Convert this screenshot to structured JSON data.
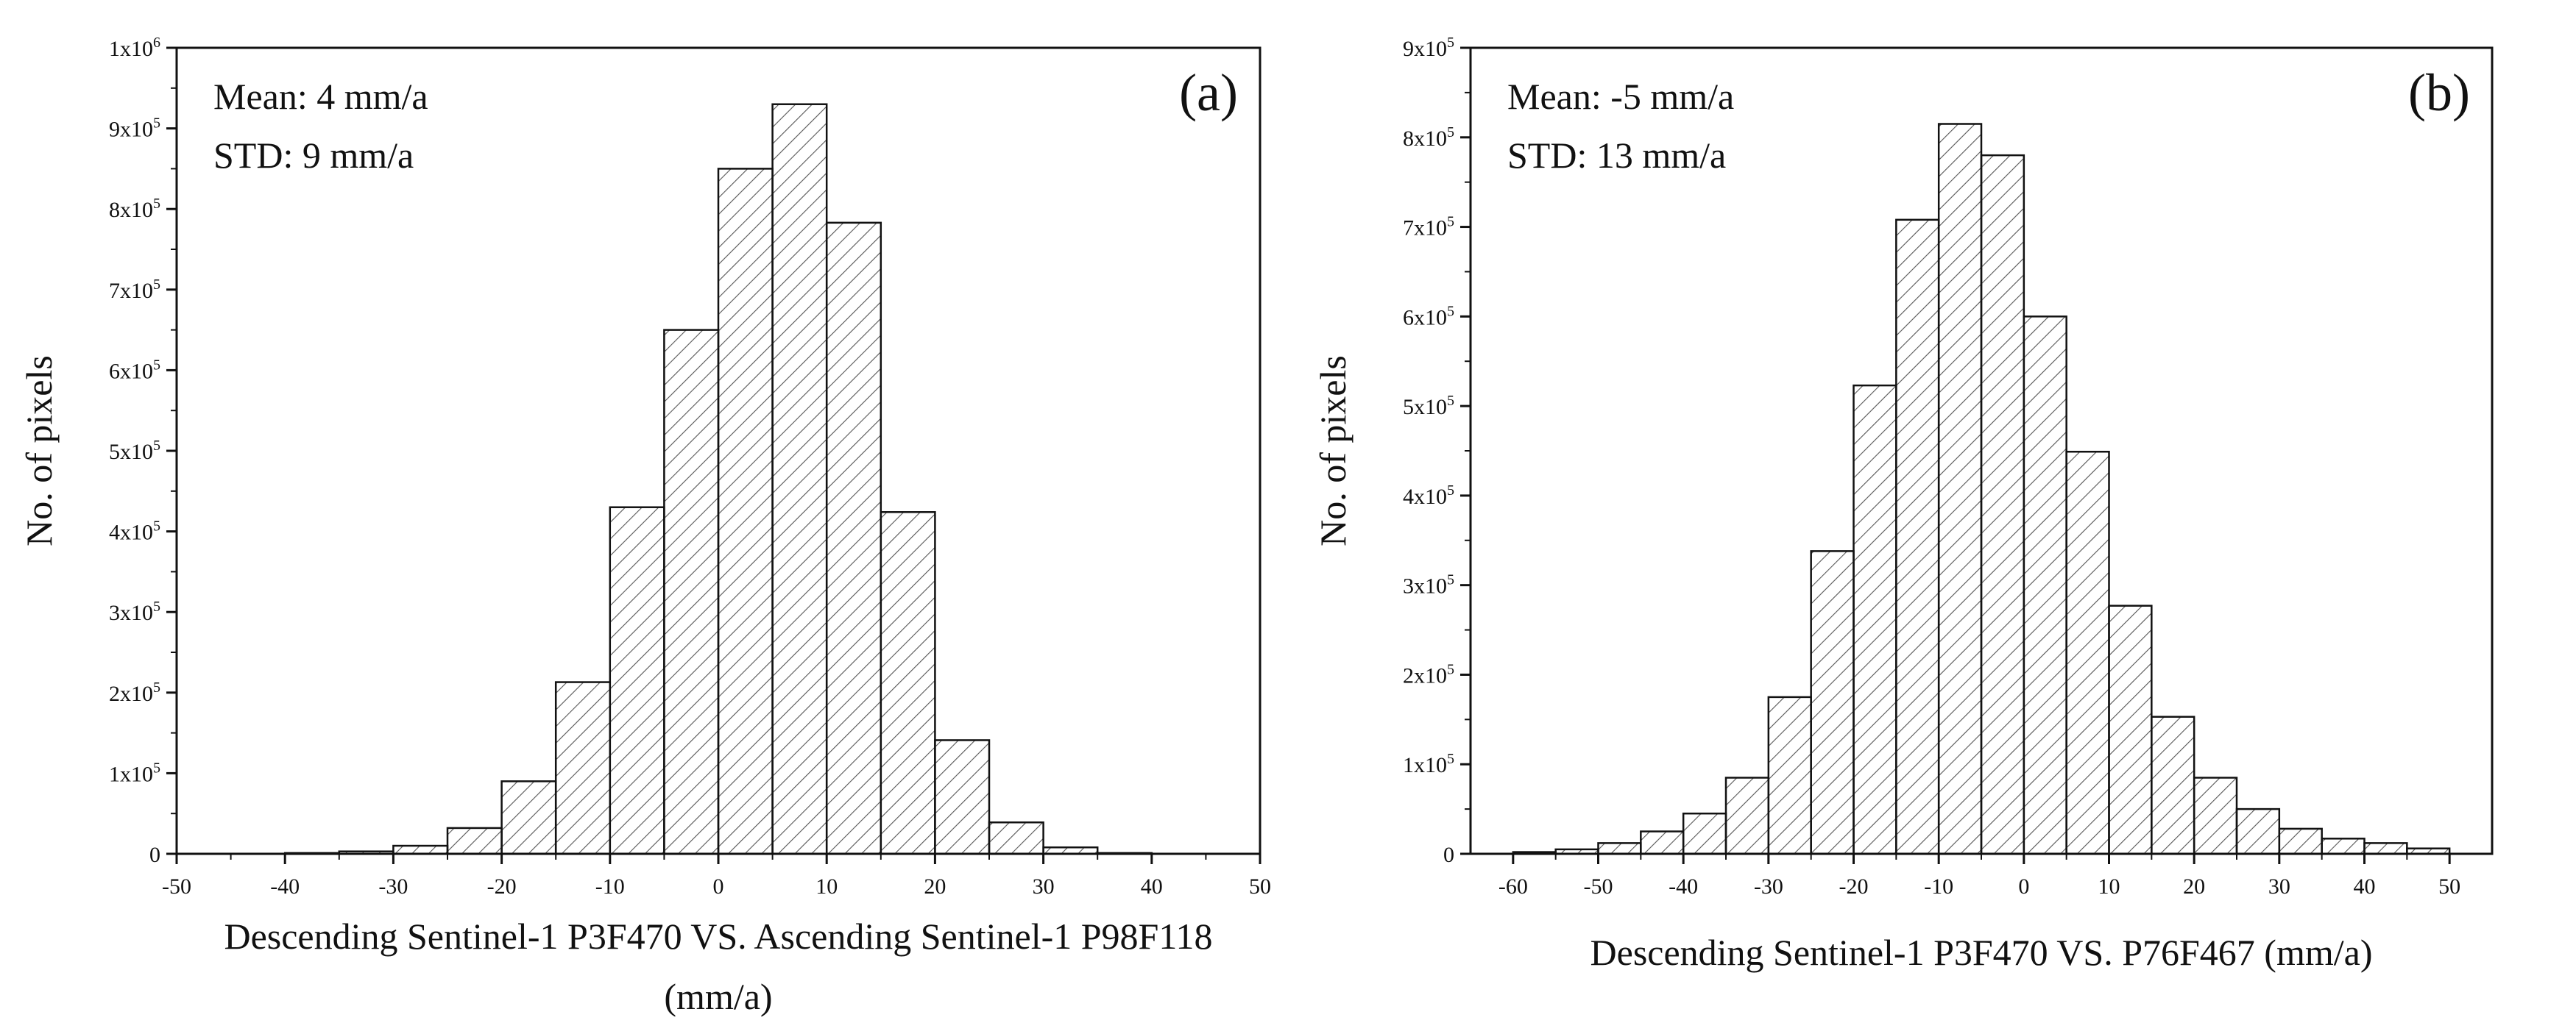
{
  "chart_data": [
    {
      "type": "bar",
      "panel_label": "(a)",
      "annotations": [
        "Mean: 4 mm/a",
        "STD:  9 mm/a"
      ],
      "xlabel_lines": [
        "Descending Sentinel-1 P3F470 VS. Ascending Sentinel-1 P98F118",
        "(mm/a)"
      ],
      "ylabel": "No. of pixels",
      "xlim": [
        -50,
        50
      ],
      "ylim": [
        0,
        1000000
      ],
      "bin_width": 5,
      "bin_starts": [
        -40,
        -35,
        -30,
        -25,
        -20,
        -15,
        -10,
        -5,
        0,
        5,
        10,
        15,
        20,
        25,
        30,
        35
      ],
      "values": [
        1000,
        3000,
        10000,
        32000,
        90000,
        213000,
        430000,
        650000,
        850000,
        930000,
        783000,
        424000,
        141000,
        39000,
        8000,
        1000
      ],
      "x_ticks": [
        -50,
        -40,
        -30,
        -20,
        -10,
        0,
        10,
        20,
        30,
        40,
        50
      ],
      "x_tick_labels": [
        "-50",
        "-40",
        "-30",
        "-20",
        "-10",
        "0",
        "10",
        "20",
        "30",
        "40",
        "50"
      ],
      "y_ticks": [
        0,
        100000,
        200000,
        300000,
        400000,
        500000,
        600000,
        700000,
        800000,
        900000,
        1000000
      ],
      "y_tick_labels": [
        {
          "base": "0",
          "exp": ""
        },
        {
          "base": "1x10",
          "exp": "5"
        },
        {
          "base": "2x10",
          "exp": "5"
        },
        {
          "base": "3x10",
          "exp": "5"
        },
        {
          "base": "4x10",
          "exp": "5"
        },
        {
          "base": "5x10",
          "exp": "5"
        },
        {
          "base": "6x10",
          "exp": "5"
        },
        {
          "base": "7x10",
          "exp": "5"
        },
        {
          "base": "8x10",
          "exp": "5"
        },
        {
          "base": "9x10",
          "exp": "5"
        },
        {
          "base": "1x10",
          "exp": "6"
        }
      ],
      "colors": {
        "fill": "#ffffff",
        "hatch": "#555555",
        "edge": "#111111"
      }
    },
    {
      "type": "bar",
      "panel_label": "(b)",
      "annotations": [
        "Mean: -5 mm/a",
        "STD:  13 mm/a"
      ],
      "xlabel_lines": [
        "Descending Sentinel-1 P3F470 VS. P76F467 (mm/a)"
      ],
      "ylabel": "No. of pixels",
      "xlim": [
        -65,
        55
      ],
      "ylim": [
        0,
        900000
      ],
      "bin_width": 5,
      "bin_starts": [
        -60,
        -55,
        -50,
        -45,
        -40,
        -35,
        -30,
        -25,
        -20,
        -15,
        -10,
        -5,
        0,
        5,
        10,
        15,
        20,
        25,
        30,
        35,
        40,
        45
      ],
      "values": [
        2000,
        5000,
        12000,
        25000,
        45000,
        85000,
        175000,
        338000,
        523000,
        708000,
        815000,
        780000,
        600000,
        449000,
        277000,
        153000,
        85000,
        50000,
        28000,
        17000,
        12000,
        6000
      ],
      "x_ticks": [
        -60,
        -50,
        -40,
        -30,
        -20,
        -10,
        0,
        10,
        20,
        30,
        40,
        50
      ],
      "x_tick_labels": [
        "-60",
        "-50",
        "-40",
        "-30",
        "-20",
        "-10",
        "0",
        "10",
        "20",
        "30",
        "40",
        "50"
      ],
      "y_ticks": [
        0,
        100000,
        200000,
        300000,
        400000,
        500000,
        600000,
        700000,
        800000,
        900000
      ],
      "y_tick_labels": [
        {
          "base": "0",
          "exp": ""
        },
        {
          "base": "1x10",
          "exp": "5"
        },
        {
          "base": "2x10",
          "exp": "5"
        },
        {
          "base": "3x10",
          "exp": "5"
        },
        {
          "base": "4x10",
          "exp": "5"
        },
        {
          "base": "5x10",
          "exp": "5"
        },
        {
          "base": "6x10",
          "exp": "5"
        },
        {
          "base": "7x10",
          "exp": "5"
        },
        {
          "base": "8x10",
          "exp": "5"
        },
        {
          "base": "9x10",
          "exp": "5"
        }
      ],
      "colors": {
        "fill": "#ffffff",
        "hatch": "#555555",
        "edge": "#111111"
      }
    }
  ]
}
